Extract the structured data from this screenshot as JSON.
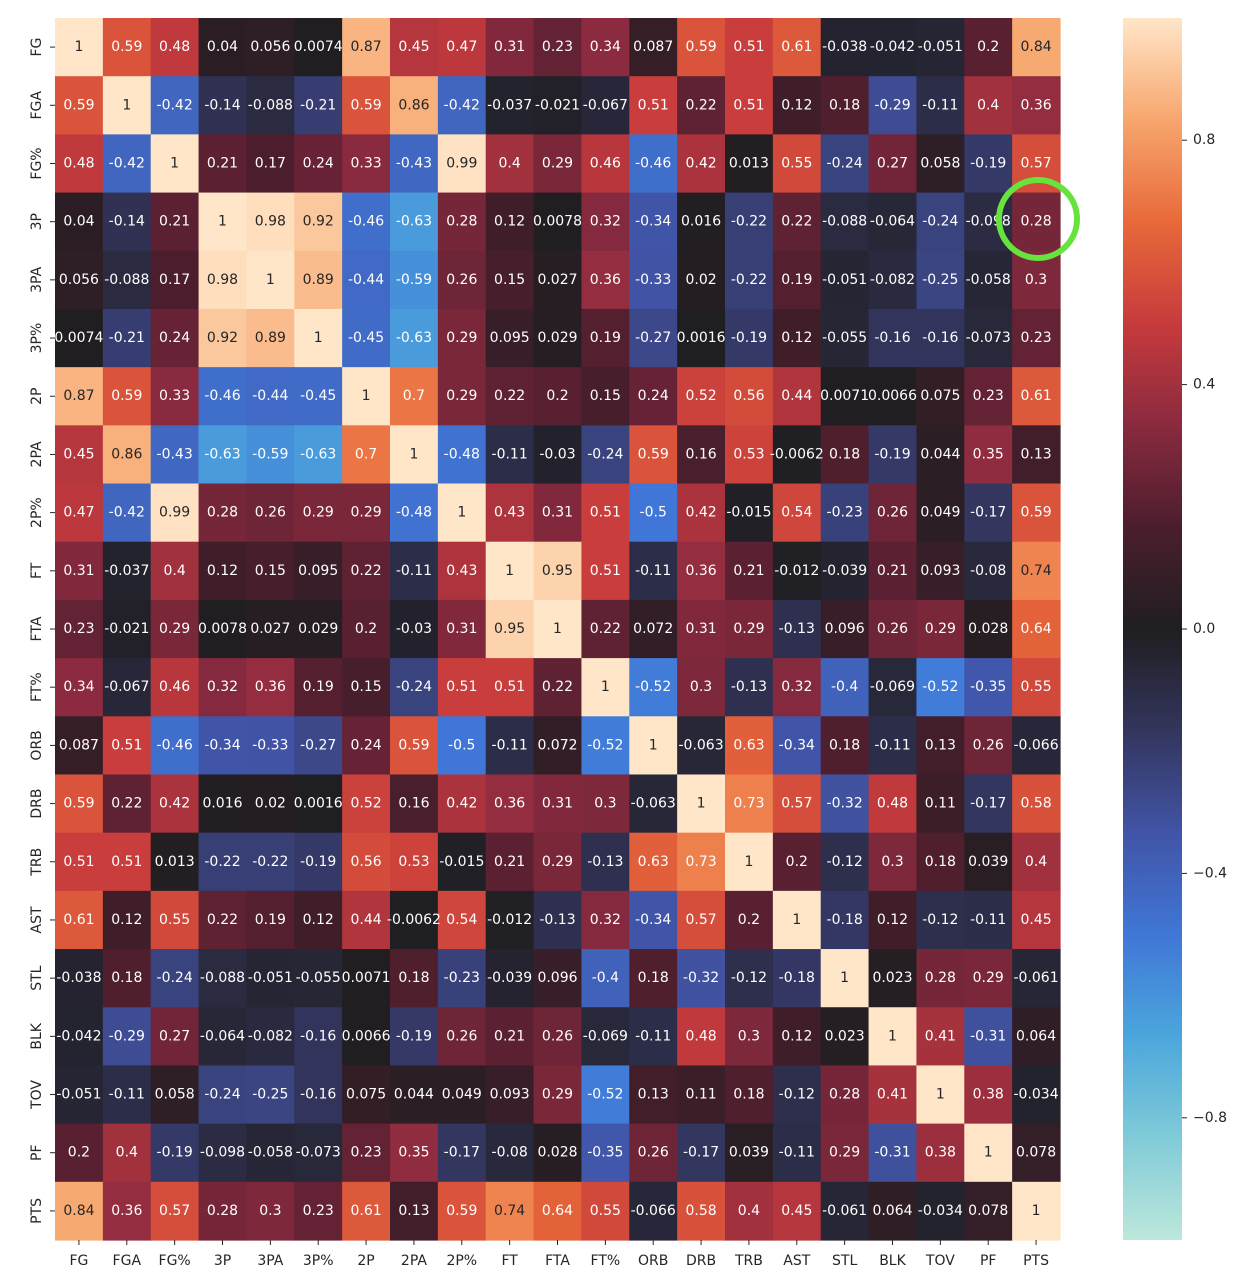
{
  "chart_data": {
    "type": "heatmap",
    "title": "",
    "xlabel": "",
    "ylabel": "",
    "labels": [
      "FG",
      "FGA",
      "FG%",
      "3P",
      "3PA",
      "3P%",
      "2P",
      "2PA",
      "2P%",
      "FT",
      "FTA",
      "FT%",
      "ORB",
      "DRB",
      "TRB",
      "AST",
      "STL",
      "BLK",
      "TOV",
      "PF",
      "PTS"
    ],
    "values": [
      [
        1,
        0.59,
        0.48,
        0.04,
        0.056,
        0.0074,
        0.87,
        0.45,
        0.47,
        0.31,
        0.23,
        0.34,
        0.087,
        0.59,
        0.51,
        0.61,
        -0.038,
        -0.042,
        -0.051,
        0.2,
        0.84
      ],
      [
        0.59,
        1,
        -0.42,
        -0.14,
        -0.088,
        -0.21,
        0.59,
        0.86,
        -0.42,
        -0.037,
        -0.021,
        -0.067,
        0.51,
        0.22,
        0.51,
        0.12,
        0.18,
        -0.29,
        -0.11,
        0.4,
        0.36
      ],
      [
        0.48,
        -0.42,
        1,
        0.21,
        0.17,
        0.24,
        0.33,
        -0.43,
        0.99,
        0.4,
        0.29,
        0.46,
        -0.46,
        0.42,
        0.013,
        0.55,
        -0.24,
        0.27,
        0.058,
        -0.19,
        0.57
      ],
      [
        0.04,
        -0.14,
        0.21,
        1,
        0.98,
        0.92,
        -0.46,
        -0.63,
        0.28,
        0.12,
        0.0078,
        0.32,
        -0.34,
        0.016,
        -0.22,
        0.22,
        -0.088,
        -0.064,
        -0.24,
        -0.098,
        0.28
      ],
      [
        0.056,
        -0.088,
        0.17,
        0.98,
        1,
        0.89,
        -0.44,
        -0.59,
        0.26,
        0.15,
        0.027,
        0.36,
        -0.33,
        0.02,
        -0.22,
        0.19,
        -0.051,
        -0.082,
        -0.25,
        -0.058,
        0.3
      ],
      [
        0.0074,
        -0.21,
        0.24,
        0.92,
        0.89,
        1,
        -0.45,
        -0.63,
        0.29,
        0.095,
        0.029,
        0.19,
        -0.27,
        0.0016,
        -0.19,
        0.12,
        -0.055,
        -0.16,
        -0.16,
        -0.073,
        0.23
      ],
      [
        0.87,
        0.59,
        0.33,
        -0.46,
        -0.44,
        -0.45,
        1,
        0.7,
        0.29,
        0.22,
        0.2,
        0.15,
        0.24,
        0.52,
        0.56,
        0.44,
        0.0071,
        0.0066,
        0.075,
        0.23,
        0.61
      ],
      [
        0.45,
        0.86,
        -0.43,
        -0.63,
        -0.59,
        -0.63,
        0.7,
        1,
        -0.48,
        -0.11,
        -0.03,
        -0.24,
        0.59,
        0.16,
        0.53,
        -0.0062,
        0.18,
        -0.19,
        0.044,
        0.35,
        0.13
      ],
      [
        0.47,
        -0.42,
        0.99,
        0.28,
        0.26,
        0.29,
        0.29,
        -0.48,
        1,
        0.43,
        0.31,
        0.51,
        -0.5,
        0.42,
        -0.015,
        0.54,
        -0.23,
        0.26,
        0.049,
        -0.17,
        0.59
      ],
      [
        0.31,
        -0.037,
        0.4,
        0.12,
        0.15,
        0.095,
        0.22,
        -0.11,
        0.43,
        1,
        0.95,
        0.51,
        -0.11,
        0.36,
        0.21,
        -0.012,
        -0.039,
        0.21,
        0.093,
        -0.08,
        0.74
      ],
      [
        0.23,
        -0.021,
        0.29,
        0.0078,
        0.027,
        0.029,
        0.2,
        -0.03,
        0.31,
        0.95,
        1,
        0.22,
        0.072,
        0.31,
        0.29,
        -0.13,
        0.096,
        0.26,
        0.29,
        0.028,
        0.64
      ],
      [
        0.34,
        -0.067,
        0.46,
        0.32,
        0.36,
        0.19,
        0.15,
        -0.24,
        0.51,
        0.51,
        0.22,
        1,
        -0.52,
        0.3,
        -0.13,
        0.32,
        -0.4,
        -0.069,
        -0.52,
        -0.35,
        0.55
      ],
      [
        0.087,
        0.51,
        -0.46,
        -0.34,
        -0.33,
        -0.27,
        0.24,
        0.59,
        -0.5,
        -0.11,
        0.072,
        -0.52,
        1,
        -0.063,
        0.63,
        -0.34,
        0.18,
        -0.11,
        0.13,
        0.26,
        -0.066
      ],
      [
        0.59,
        0.22,
        0.42,
        0.016,
        0.02,
        0.0016,
        0.52,
        0.16,
        0.42,
        0.36,
        0.31,
        0.3,
        -0.063,
        1,
        0.73,
        0.57,
        -0.32,
        0.48,
        0.11,
        -0.17,
        0.58
      ],
      [
        0.51,
        0.51,
        0.013,
        -0.22,
        -0.22,
        -0.19,
        0.56,
        0.53,
        -0.015,
        0.21,
        0.29,
        -0.13,
        0.63,
        0.73,
        1,
        0.2,
        -0.12,
        0.3,
        0.18,
        0.039,
        0.4
      ],
      [
        0.61,
        0.12,
        0.55,
        0.22,
        0.19,
        0.12,
        0.44,
        -0.0062,
        0.54,
        -0.012,
        -0.13,
        0.32,
        -0.34,
        0.57,
        0.2,
        1,
        -0.18,
        0.12,
        -0.12,
        -0.11,
        0.45
      ],
      [
        -0.038,
        0.18,
        -0.24,
        -0.088,
        -0.051,
        -0.055,
        0.0071,
        0.18,
        -0.23,
        -0.039,
        0.096,
        -0.4,
        0.18,
        -0.32,
        -0.12,
        -0.18,
        1,
        0.023,
        0.28,
        0.29,
        -0.061
      ],
      [
        -0.042,
        -0.29,
        0.27,
        -0.064,
        -0.082,
        -0.16,
        0.0066,
        -0.19,
        0.26,
        0.21,
        0.26,
        -0.069,
        -0.11,
        0.48,
        0.3,
        0.12,
        0.023,
        1,
        0.41,
        -0.31,
        0.064
      ],
      [
        -0.051,
        -0.11,
        0.058,
        -0.24,
        -0.25,
        -0.16,
        0.075,
        0.044,
        0.049,
        0.093,
        0.29,
        -0.52,
        0.13,
        0.11,
        0.18,
        -0.12,
        0.28,
        0.41,
        1,
        0.38,
        -0.034
      ],
      [
        0.2,
        0.4,
        -0.19,
        -0.098,
        -0.058,
        -0.073,
        0.23,
        0.35,
        -0.17,
        -0.08,
        0.028,
        -0.35,
        0.26,
        -0.17,
        0.039,
        -0.11,
        0.29,
        -0.31,
        0.38,
        1,
        0.078
      ],
      [
        0.84,
        0.36,
        0.57,
        0.28,
        0.3,
        0.23,
        0.61,
        0.13,
        0.59,
        0.74,
        0.64,
        0.55,
        -0.066,
        0.58,
        0.4,
        0.45,
        -0.061,
        0.064,
        -0.034,
        0.078,
        1
      ]
    ],
    "vmin": -1,
    "vmax": 1,
    "colormap": "icefire",
    "colorbar_ticks": [
      -0.8,
      -0.4,
      0.0,
      0.4,
      0.8
    ],
    "colorbar_tick_labels": [
      "−0.8",
      "−0.4",
      "0.0",
      "0.4",
      "0.8"
    ],
    "colorbar_stops": [
      "#bde7db",
      "#80cbd8",
      "#4ba6dc",
      "#4076d7",
      "#4154a6",
      "#33355d",
      "#1f1e21",
      "#4b1e2d",
      "#8a2a3f",
      "#c73b3c",
      "#e8693a",
      "#f7a66e",
      "#ffe6c8"
    ],
    "highlight": {
      "row": "3P",
      "col": "PTS",
      "color": "#66e33d"
    }
  }
}
